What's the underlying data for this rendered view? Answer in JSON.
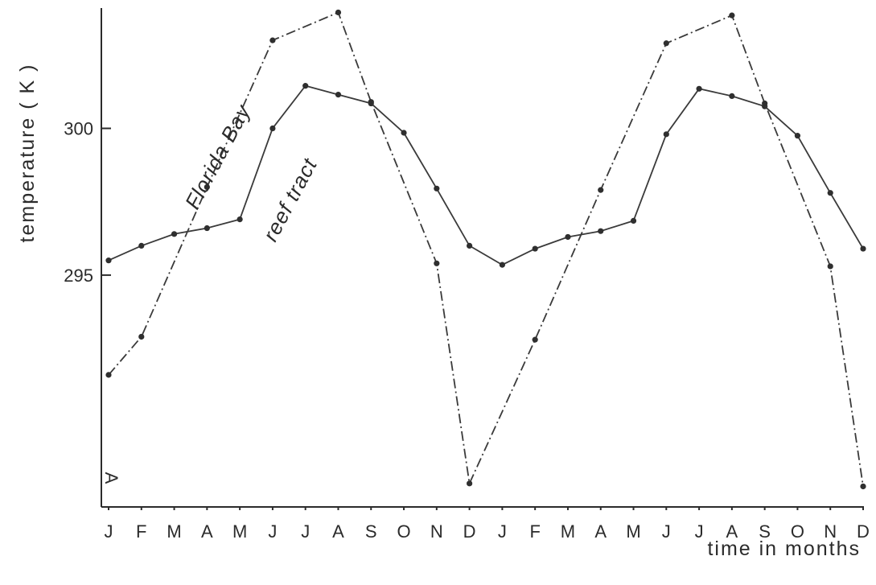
{
  "chart_data": {
    "type": "line",
    "xlabel": "time in months",
    "ylabel": "temperature ( K )",
    "panel_label": "A",
    "categories": [
      "J",
      "F",
      "M",
      "A",
      "M",
      "J",
      "J",
      "A",
      "S",
      "O",
      "N",
      "D",
      "J",
      "F",
      "M",
      "A",
      "M",
      "J",
      "J",
      "A",
      "S",
      "O",
      "N",
      "D"
    ],
    "yticks": [
      295,
      300
    ],
    "ylim": [
      287.1,
      304.1
    ],
    "grid": false,
    "series": [
      {
        "name": "reef tract",
        "style": "solid",
        "values": [
          295.5,
          296.0,
          296.4,
          296.6,
          296.9,
          300.0,
          301.45,
          301.15,
          300.85,
          299.85,
          297.95,
          296.0,
          295.35,
          295.9,
          296.3,
          296.5,
          296.85,
          299.8,
          301.35,
          301.1,
          300.75,
          299.75,
          297.8,
          295.9
        ]
      },
      {
        "name": "Florida Bay",
        "style": "dashdot",
        "values": [
          291.6,
          292.9,
          null,
          298.0,
          null,
          303.0,
          null,
          303.95,
          300.9,
          null,
          295.4,
          287.9,
          null,
          292.8,
          null,
          297.9,
          null,
          302.9,
          null,
          303.85,
          300.85,
          null,
          295.3,
          287.8
        ]
      }
    ],
    "annotations": [
      {
        "text": "Florida Bay",
        "series": "Florida Bay"
      },
      {
        "text": "reef tract",
        "series": "reef tract"
      }
    ],
    "colors": {
      "ink": "#2f2f2f",
      "background": "#ffffff"
    }
  }
}
